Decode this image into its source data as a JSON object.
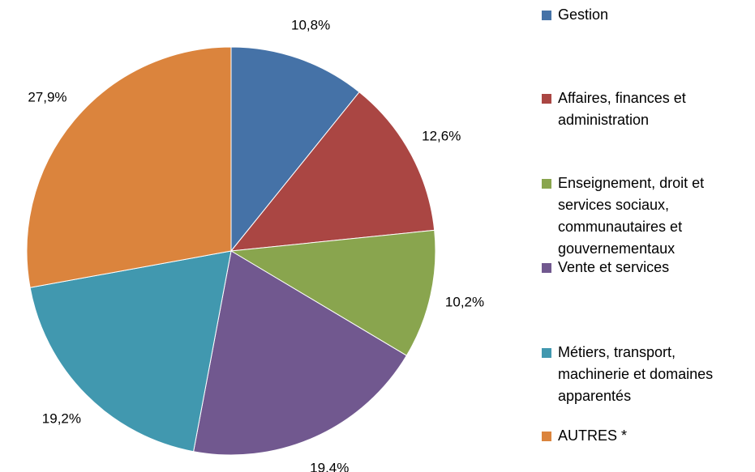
{
  "chart_data": {
    "type": "pie",
    "categories": [
      "Gestion",
      "Affaires, finances et administration",
      "Enseignement, droit et services sociaux, communautaires et gouvernementaux",
      "Vente et services",
      "Métiers, transport, machinerie et domaines apparentés",
      "AUTRES *"
    ],
    "values": [
      10.8,
      12.6,
      10.2,
      19.4,
      19.2,
      27.9
    ],
    "value_labels": [
      "10,8%",
      "12,6%",
      "10,2%",
      "19,4%",
      "19,2%",
      "27,9%"
    ],
    "colors": [
      "#4572a7",
      "#aa4643",
      "#89a54e",
      "#71588f",
      "#4198af",
      "#db843d"
    ],
    "legend": "right"
  }
}
